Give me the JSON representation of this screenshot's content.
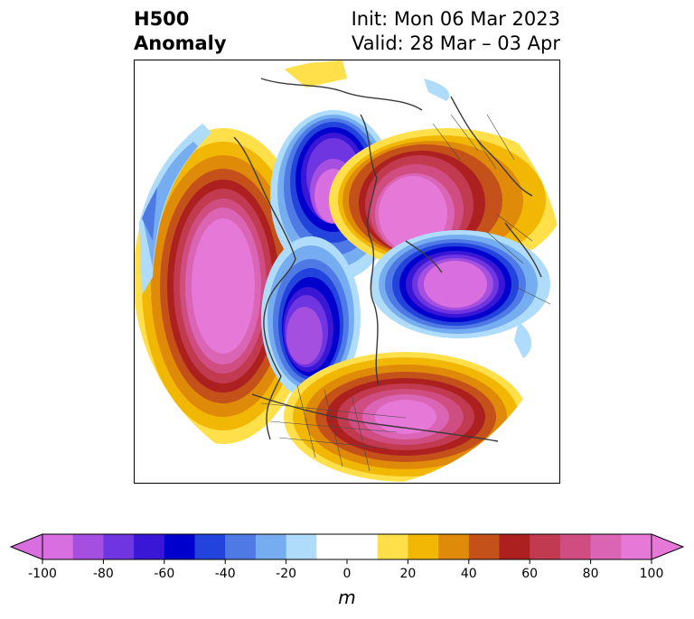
{
  "title": {
    "left_line1": "H500",
    "left_line2": "Anomaly",
    "right_line1": "Init: Mon 06 Mar 2023",
    "right_line2": "Valid: 28 Mar – 03 Apr"
  },
  "colorbar": {
    "unit": "m",
    "ticks": [
      "-100",
      "-80",
      "-60",
      "-40",
      "-20",
      "0",
      "20",
      "40",
      "60",
      "80",
      "100"
    ],
    "colors": [
      "#d96ee0",
      "#a44fe0",
      "#6f35e0",
      "#3a16d6",
      "#0000cc",
      "#2244dd",
      "#4f7ae6",
      "#76adf0",
      "#aedcfa",
      "#ffffff",
      "#ffffff",
      "#ffe04a",
      "#f2b705",
      "#e08a0a",
      "#c4501a",
      "#ad2020",
      "#c23a50",
      "#cf4d80",
      "#da65b5",
      "#e678d8"
    ],
    "neg_end_color": "#d96ee0",
    "pos_end_color": "#e678d8"
  },
  "map": {
    "anomaly_centers": [
      {
        "name": "pacific-ridge",
        "sign": "positive",
        "intensity": "strong"
      },
      {
        "name": "siberia-trough",
        "sign": "negative",
        "intensity": "strong"
      },
      {
        "name": "arctic-ridge",
        "sign": "positive",
        "intensity": "strong"
      },
      {
        "name": "europe-trough",
        "sign": "negative",
        "intensity": "strong"
      },
      {
        "name": "canada-trough",
        "sign": "negative",
        "intensity": "strong"
      },
      {
        "name": "us-atlantic-ridge",
        "sign": "positive",
        "intensity": "strong"
      }
    ]
  }
}
